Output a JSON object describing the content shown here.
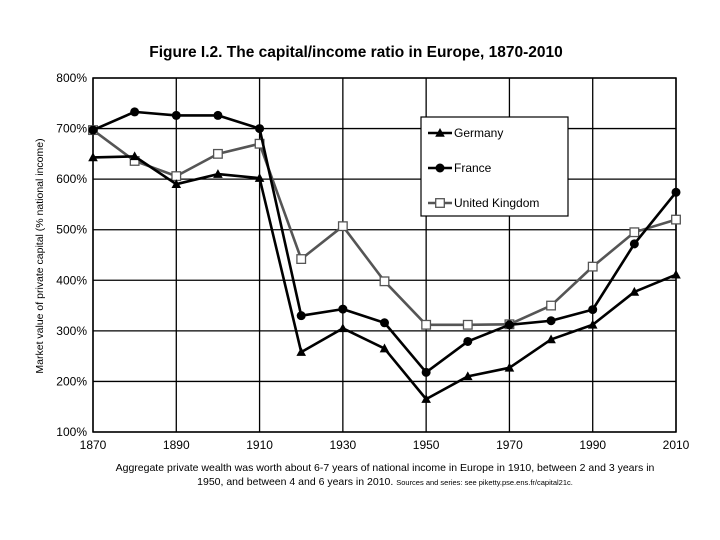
{
  "chart_data": {
    "type": "line",
    "title": "Figure I.2. The capital/income ratio in Europe, 1870-2010",
    "ylabel": "Market value of private capital (% national income)",
    "xlabel": "",
    "xlim": [
      1870,
      2010
    ],
    "ylim": [
      100,
      800
    ],
    "x_ticks": [
      1870,
      1890,
      1910,
      1930,
      1950,
      1970,
      1990,
      2010
    ],
    "y_ticks": [
      100,
      200,
      300,
      400,
      500,
      600,
      700,
      800
    ],
    "y_tick_labels": [
      "100%",
      "200%",
      "300%",
      "400%",
      "500%",
      "600%",
      "700%",
      "800%"
    ],
    "grid": true,
    "legend_position": "top-right",
    "series": [
      {
        "name": "Germany",
        "marker": "triangle",
        "color": "#000000",
        "x": [
          1870,
          1880,
          1890,
          1900,
          1910,
          1920,
          1930,
          1940,
          1950,
          1960,
          1970,
          1980,
          1990,
          2000,
          2010
        ],
        "values": [
          643,
          645,
          590,
          610,
          602,
          258,
          305,
          265,
          165,
          210,
          227,
          283,
          312,
          377,
          411
        ]
      },
      {
        "name": "France",
        "marker": "circle",
        "color": "#000000",
        "x": [
          1870,
          1880,
          1890,
          1900,
          1910,
          1920,
          1930,
          1940,
          1950,
          1960,
          1970,
          1980,
          1990,
          2000,
          2010
        ],
        "values": [
          697,
          733,
          726,
          726,
          700,
          330,
          343,
          316,
          218,
          279,
          312,
          320,
          342,
          472,
          574
        ]
      },
      {
        "name": "United Kingdom",
        "marker": "square-open",
        "color": "#555555",
        "x": [
          1870,
          1880,
          1890,
          1900,
          1910,
          1920,
          1930,
          1940,
          1950,
          1960,
          1970,
          1980,
          1990,
          2000,
          2010
        ],
        "values": [
          697,
          636,
          606,
          650,
          670,
          442,
          507,
          398,
          312,
          312,
          313,
          350,
          427,
          495,
          520
        ]
      }
    ]
  },
  "caption": {
    "line1": "Aggregate private wealth was worth about 6-7 years of national income in Europe in 1910, between 2 and 3 years in",
    "line2": "1950, and between 4 and 6 years in 2010.",
    "source": "Sources and series: see piketty.pse.ens.fr/capital21c."
  }
}
